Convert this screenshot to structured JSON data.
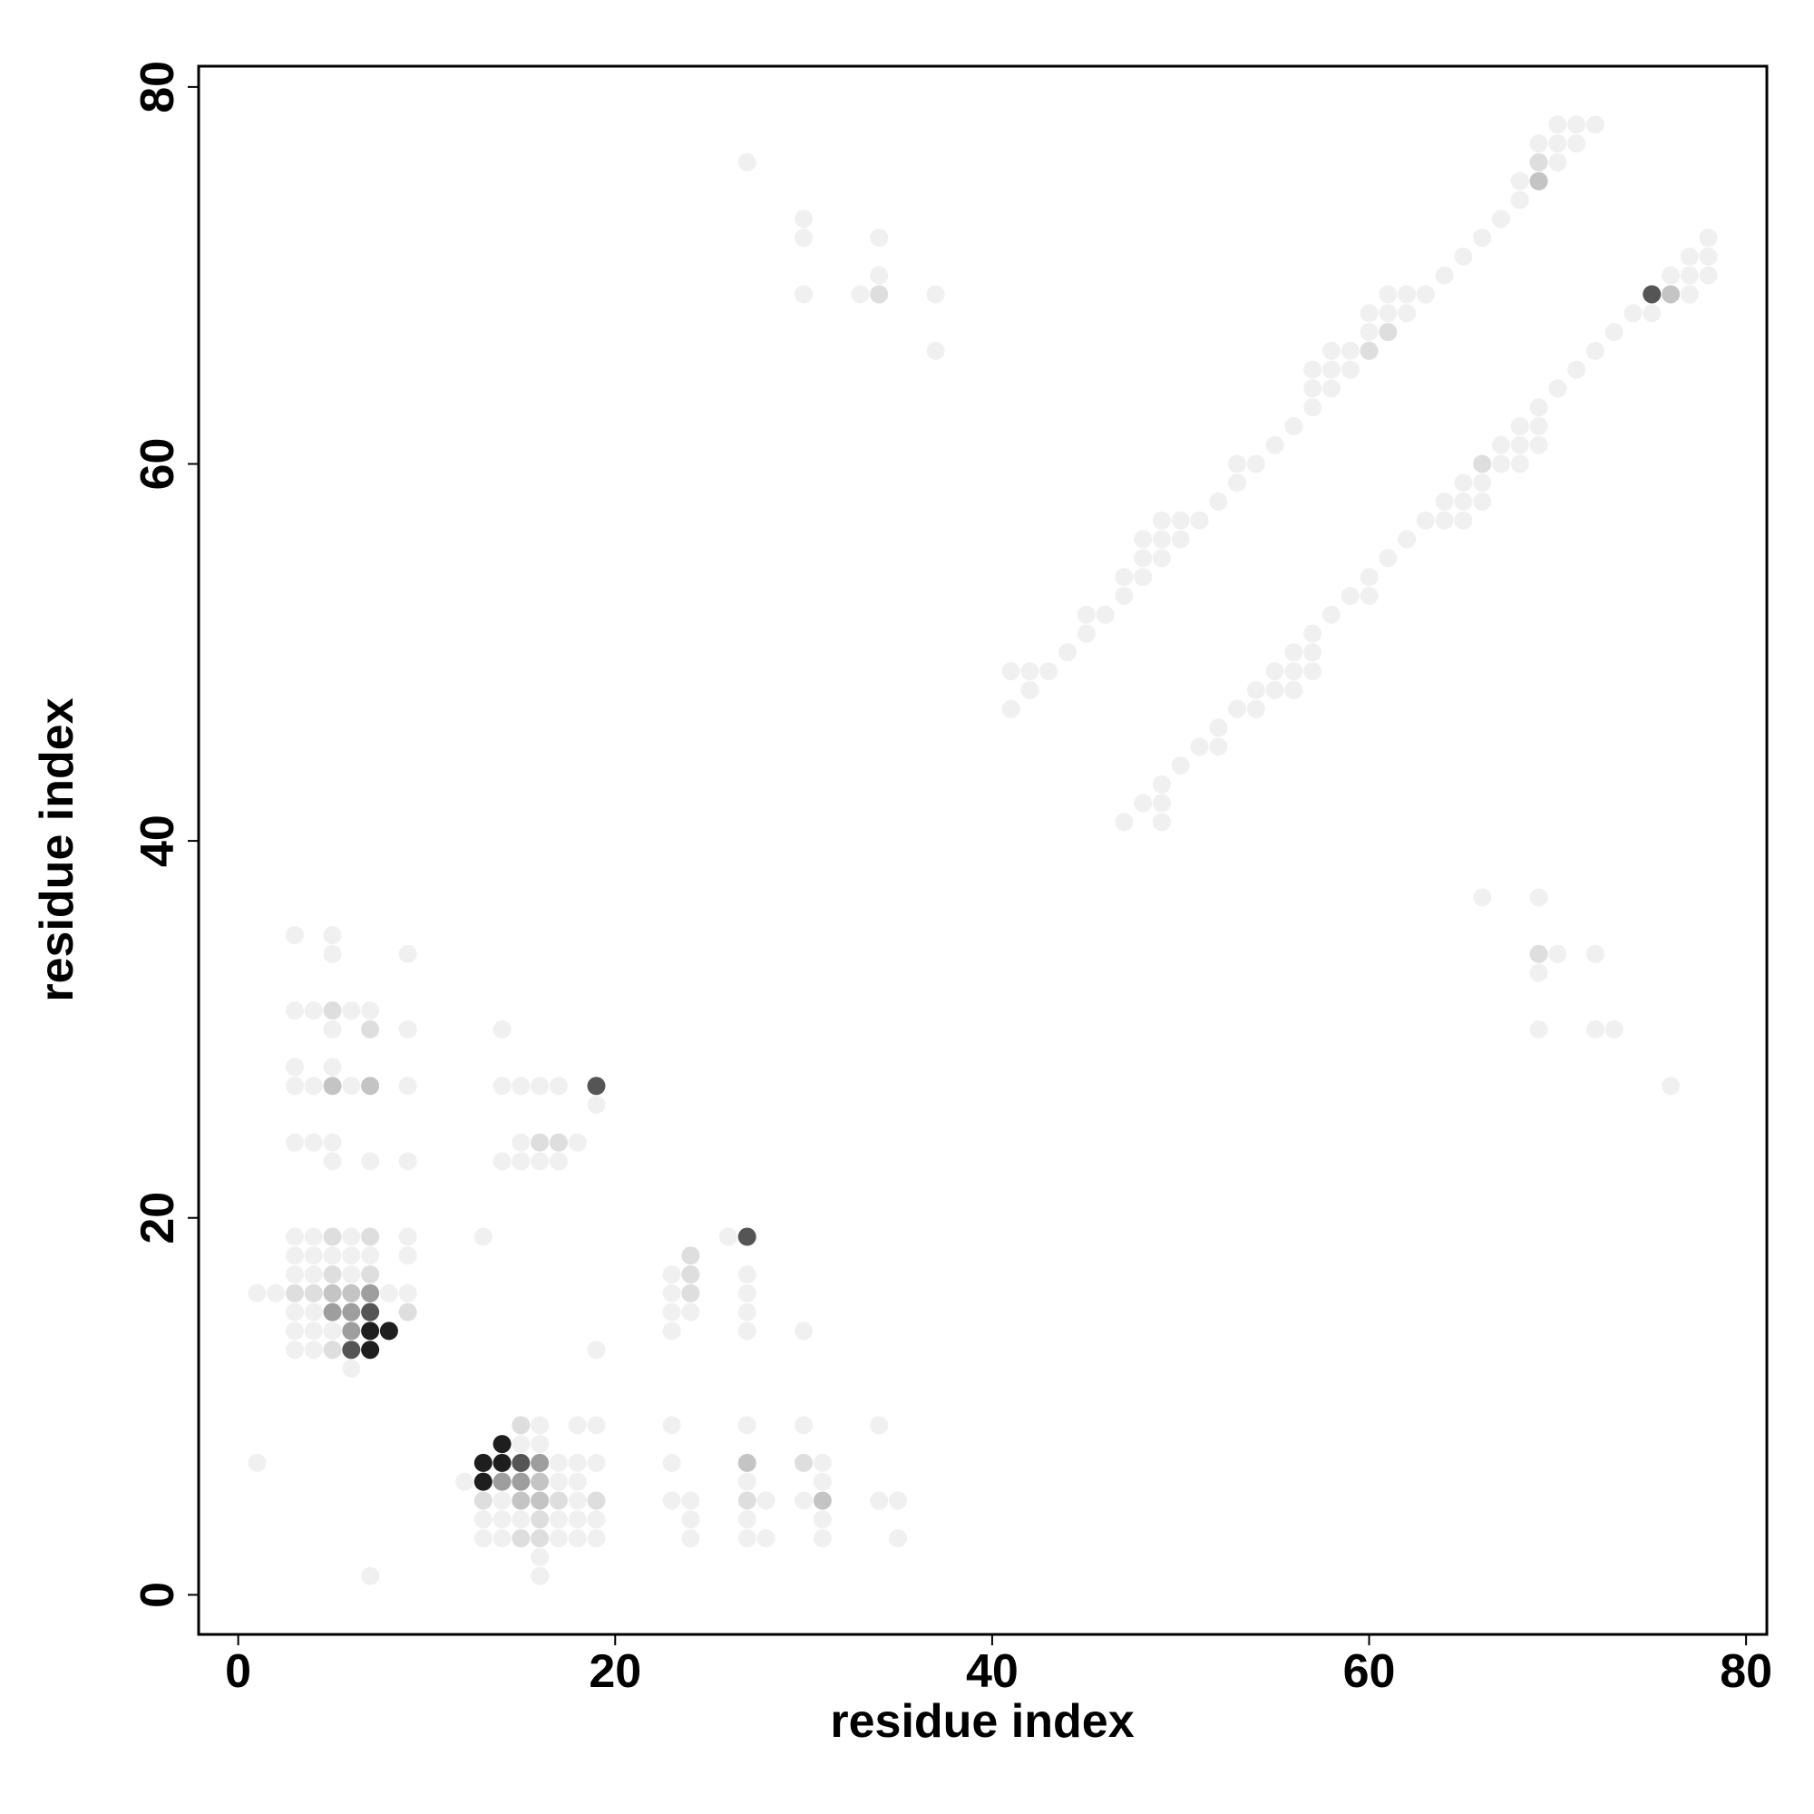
{
  "chart_data": {
    "type": "scatter",
    "x_label": "residue index",
    "y_label": "residue index",
    "xlim": [
      -2.1,
      81.1
    ],
    "ylim": [
      -2.1,
      81.1
    ],
    "xticks": [
      0,
      20,
      40,
      60,
      80
    ],
    "yticks": [
      0,
      20,
      40,
      60,
      80
    ],
    "series": [
      {
        "color": "#f0f0f0",
        "x": [
          41,
          41,
          42,
          42,
          43,
          44,
          45,
          45,
          46,
          47,
          47,
          48,
          48,
          48,
          49,
          49,
          49,
          50,
          50,
          51,
          52,
          53,
          53,
          54,
          55,
          56,
          57,
          57,
          57,
          58,
          58,
          58,
          59,
          59,
          60,
          60,
          61,
          61,
          62,
          62,
          63,
          64,
          65,
          66,
          67,
          68,
          68,
          69,
          70,
          70,
          70,
          71,
          71,
          72,
          47,
          48,
          49,
          49,
          49,
          50,
          51,
          52,
          52,
          53,
          54,
          54,
          55,
          55,
          56,
          56,
          56,
          57,
          57,
          57,
          58,
          59,
          60,
          60,
          61,
          62,
          63,
          64,
          64,
          65,
          65,
          65,
          66,
          66,
          67,
          67,
          68,
          68,
          68,
          69,
          69,
          69,
          70,
          71,
          72,
          73,
          74,
          75,
          76,
          77,
          77,
          77,
          78,
          78,
          78,
          27,
          30,
          30,
          30,
          33,
          34,
          34,
          37,
          37,
          66,
          69,
          69,
          69,
          70,
          72,
          72,
          73,
          76,
          3,
          5,
          5,
          9,
          3,
          4,
          6,
          7,
          5,
          9,
          3,
          5,
          3,
          4,
          6,
          9,
          3,
          4,
          5,
          5,
          7,
          9,
          3,
          4,
          6,
          9,
          3,
          4,
          5,
          6,
          7,
          9,
          3,
          4,
          6,
          1,
          2,
          8,
          9,
          3,
          4,
          3,
          4,
          5,
          3,
          4,
          6,
          7,
          1,
          14,
          14,
          15,
          16,
          17,
          19,
          15,
          18,
          14,
          15,
          16,
          17,
          13,
          23,
          23,
          23,
          24,
          23,
          26,
          27,
          27,
          27,
          27,
          30,
          19,
          16,
          18,
          19,
          15,
          16,
          17,
          18,
          19,
          12,
          17,
          18,
          14,
          18,
          13,
          14,
          15,
          17,
          18,
          19,
          13,
          14,
          17,
          18,
          19,
          16,
          16,
          23,
          27,
          30,
          34,
          23,
          31,
          27,
          31,
          23,
          24,
          28,
          30,
          34,
          35,
          24,
          27,
          31,
          24,
          27,
          28,
          31,
          35
        ],
        "values": [
          47,
          49,
          48,
          49,
          49,
          50,
          51,
          52,
          52,
          53,
          54,
          54,
          55,
          56,
          55,
          56,
          57,
          56,
          57,
          57,
          58,
          59,
          60,
          60,
          61,
          62,
          63,
          64,
          65,
          64,
          65,
          66,
          65,
          66,
          67,
          68,
          68,
          69,
          68,
          69,
          69,
          70,
          71,
          72,
          73,
          74,
          75,
          77,
          76,
          77,
          78,
          77,
          78,
          78,
          41,
          42,
          41,
          42,
          43,
          44,
          45,
          45,
          46,
          47,
          47,
          48,
          48,
          49,
          48,
          49,
          50,
          49,
          50,
          51,
          52,
          53,
          53,
          54,
          55,
          56,
          57,
          57,
          58,
          57,
          58,
          59,
          58,
          59,
          60,
          61,
          60,
          61,
          62,
          61,
          62,
          63,
          64,
          65,
          66,
          67,
          68,
          68,
          70,
          69,
          70,
          71,
          70,
          71,
          72,
          76,
          69,
          72,
          73,
          69,
          70,
          72,
          66,
          69,
          37,
          37,
          33,
          30,
          34,
          34,
          30,
          30,
          27,
          35,
          35,
          34,
          34,
          31,
          31,
          31,
          31,
          30,
          30,
          28,
          28,
          27,
          27,
          27,
          27,
          24,
          24,
          24,
          23,
          23,
          23,
          19,
          19,
          19,
          19,
          18,
          18,
          18,
          18,
          18,
          18,
          17,
          17,
          17,
          16,
          16,
          16,
          16,
          15,
          15,
          14,
          14,
          14,
          13,
          13,
          12,
          1,
          7,
          30,
          27,
          27,
          27,
          27,
          26,
          24,
          24,
          23,
          23,
          23,
          23,
          19,
          17,
          16,
          15,
          15,
          14,
          19,
          17,
          16,
          15,
          14,
          14,
          13,
          9,
          9,
          9,
          8,
          8,
          7,
          7,
          7,
          6,
          6,
          6,
          5,
          5,
          4,
          4,
          4,
          4,
          4,
          4,
          3,
          3,
          3,
          3,
          3,
          2,
          1,
          9,
          9,
          9,
          9,
          7,
          7,
          6,
          6,
          5,
          5,
          5,
          5,
          5,
          5,
          4,
          4,
          4,
          3,
          3,
          3,
          3,
          3
        ]
      },
      {
        "color": "#dedede",
        "x": [
          60,
          61,
          69,
          66,
          34,
          69,
          5,
          7,
          5,
          7,
          5,
          7,
          16,
          17,
          24,
          24,
          24,
          15,
          17,
          19,
          15,
          30,
          27,
          3,
          4,
          9,
          5,
          16,
          16,
          13
        ],
        "values": [
          66,
          67,
          76,
          60,
          69,
          34,
          31,
          30,
          19,
          19,
          17,
          17,
          24,
          24,
          17,
          16,
          18,
          9,
          5,
          5,
          3,
          7,
          5,
          16,
          16,
          15,
          13,
          4,
          3,
          5
        ]
      },
      {
        "color": "#c4c4c4",
        "x": [
          69,
          76,
          5,
          7,
          5,
          6,
          16,
          15,
          16,
          27,
          31
        ],
        "values": [
          75,
          69,
          27,
          27,
          16,
          16,
          6,
          5,
          5,
          7,
          5
        ]
      },
      {
        "color": "#9e9e9e",
        "x": [
          7,
          5,
          6,
          6,
          16,
          14,
          15
        ],
        "values": [
          16,
          15,
          15,
          14,
          7,
          6,
          6
        ]
      },
      {
        "color": "#555555",
        "x": [
          75,
          19,
          27,
          7,
          6,
          15
        ],
        "values": [
          69,
          27,
          19,
          15,
          13,
          7
        ]
      },
      {
        "color": "#1e1e1e",
        "x": [
          7,
          8,
          7,
          14,
          13,
          14,
          13
        ],
        "values": [
          14,
          14,
          13,
          8,
          7,
          7,
          6
        ]
      }
    ]
  }
}
